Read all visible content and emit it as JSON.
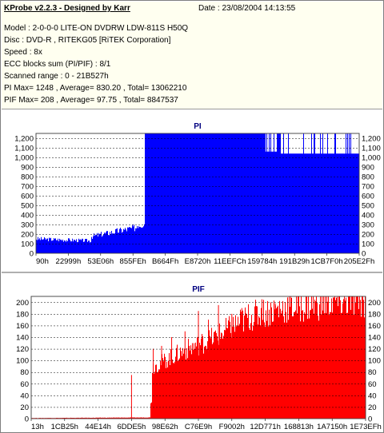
{
  "header": {
    "title": "KProbe v2.2.3 - Designed by Karr",
    "date": "Date : 23/08/2004 14:13:55",
    "lines": [
      "Model : 2-0-0-0 LITE-ON DVDRW LDW-811S   H50Q",
      "Disc : DVD-R , RITEKG05 [RiTEK Corporation]",
      "Speed : 8x",
      "ECC blocks sum (PI/PIF) : 8/1",
      "Scanned range : 0 - 21B527h",
      "PI Max= 1248 , Average= 830.20 , Total= 13062210",
      "PIF Max= 208 , Average= 97.75 , Total= 8847537"
    ]
  },
  "chart_data": [
    {
      "type": "bar",
      "title": "PI",
      "color": "#0000ff",
      "ylim": [
        0,
        1250
      ],
      "yticks": [
        0,
        100,
        200,
        300,
        400,
        500,
        600,
        700,
        800,
        900,
        1000,
        1100,
        1200
      ],
      "ytick_labels": [
        "0",
        "100",
        "200",
        "300",
        "400",
        "500",
        "600",
        "700",
        "800",
        "900",
        "1,000",
        "1,100",
        "1,200"
      ],
      "xtick_labels": [
        "90h",
        "22999h",
        "53E06h",
        "855FEh",
        "B664Fh",
        "E8720h",
        "11EEFCh",
        "159784h",
        "191B29h",
        "1CB7F0h",
        "205E2Fh"
      ],
      "grid": true,
      "profile": [
        {
          "x0": 0.0,
          "x1": 0.17,
          "from": 150,
          "to": 130
        },
        {
          "x0": 0.17,
          "x1": 0.175,
          "from": 175,
          "to": 175
        },
        {
          "x0": 0.175,
          "x1": 0.31,
          "from": 180,
          "to": 270
        },
        {
          "x0": 0.31,
          "x1": 0.315,
          "from": 300,
          "to": 300
        },
        {
          "x0": 0.315,
          "x1": 0.335,
          "from": 300,
          "to": 310
        },
        {
          "x0": 0.335,
          "x1": 1.0,
          "from": 1248,
          "to": 1248
        }
      ],
      "dips": [
        {
          "x0": 0.755,
          "x1": 1.0,
          "level": 1040
        },
        {
          "x0": 0.71,
          "x1": 0.745,
          "level": 1060
        }
      ]
    },
    {
      "type": "bar",
      "title": "PIF",
      "color": "#ff0000",
      "ylim": [
        0,
        210
      ],
      "yticks": [
        0,
        20,
        40,
        60,
        80,
        100,
        120,
        140,
        160,
        180,
        200
      ],
      "ytick_labels": [
        "0",
        "20",
        "40",
        "60",
        "80",
        "100",
        "120",
        "140",
        "160",
        "180",
        "200"
      ],
      "xtick_labels": [
        "13h",
        "1CB25h",
        "44E14h",
        "6DDE5h",
        "98E62h",
        "C76E9h",
        "F9002h",
        "12D771h",
        "168813h",
        "1A7150h",
        "1E73EFh"
      ],
      "grid": true,
      "profile": [
        {
          "x0": 0.0,
          "x1": 0.355,
          "from": 1,
          "to": 2
        },
        {
          "x0": 0.355,
          "x1": 0.36,
          "from": 30,
          "to": 30
        },
        {
          "x0": 0.36,
          "x1": 0.4,
          "from": 88,
          "to": 100
        },
        {
          "x0": 0.4,
          "x1": 0.45,
          "from": 100,
          "to": 115
        },
        {
          "x0": 0.45,
          "x1": 0.55,
          "from": 115,
          "to": 140
        },
        {
          "x0": 0.55,
          "x1": 0.65,
          "from": 140,
          "to": 175
        },
        {
          "x0": 0.65,
          "x1": 0.75,
          "from": 175,
          "to": 190
        },
        {
          "x0": 0.75,
          "x1": 0.9,
          "from": 190,
          "to": 200
        },
        {
          "x0": 0.9,
          "x1": 1.0,
          "from": 200,
          "to": 203
        }
      ],
      "spikes": [
        {
          "x": 0.3,
          "v": 75
        },
        {
          "x": 0.365,
          "v": 120
        },
        {
          "x": 0.39,
          "v": 125
        },
        {
          "x": 0.42,
          "v": 140
        },
        {
          "x": 0.46,
          "v": 150
        },
        {
          "x": 0.5,
          "v": 185
        },
        {
          "x": 0.53,
          "v": 170
        },
        {
          "x": 0.56,
          "v": 195
        },
        {
          "x": 0.6,
          "v": 180
        },
        {
          "x": 0.63,
          "v": 190
        },
        {
          "x": 0.69,
          "v": 205
        },
        {
          "x": 0.73,
          "v": 198
        }
      ]
    }
  ]
}
